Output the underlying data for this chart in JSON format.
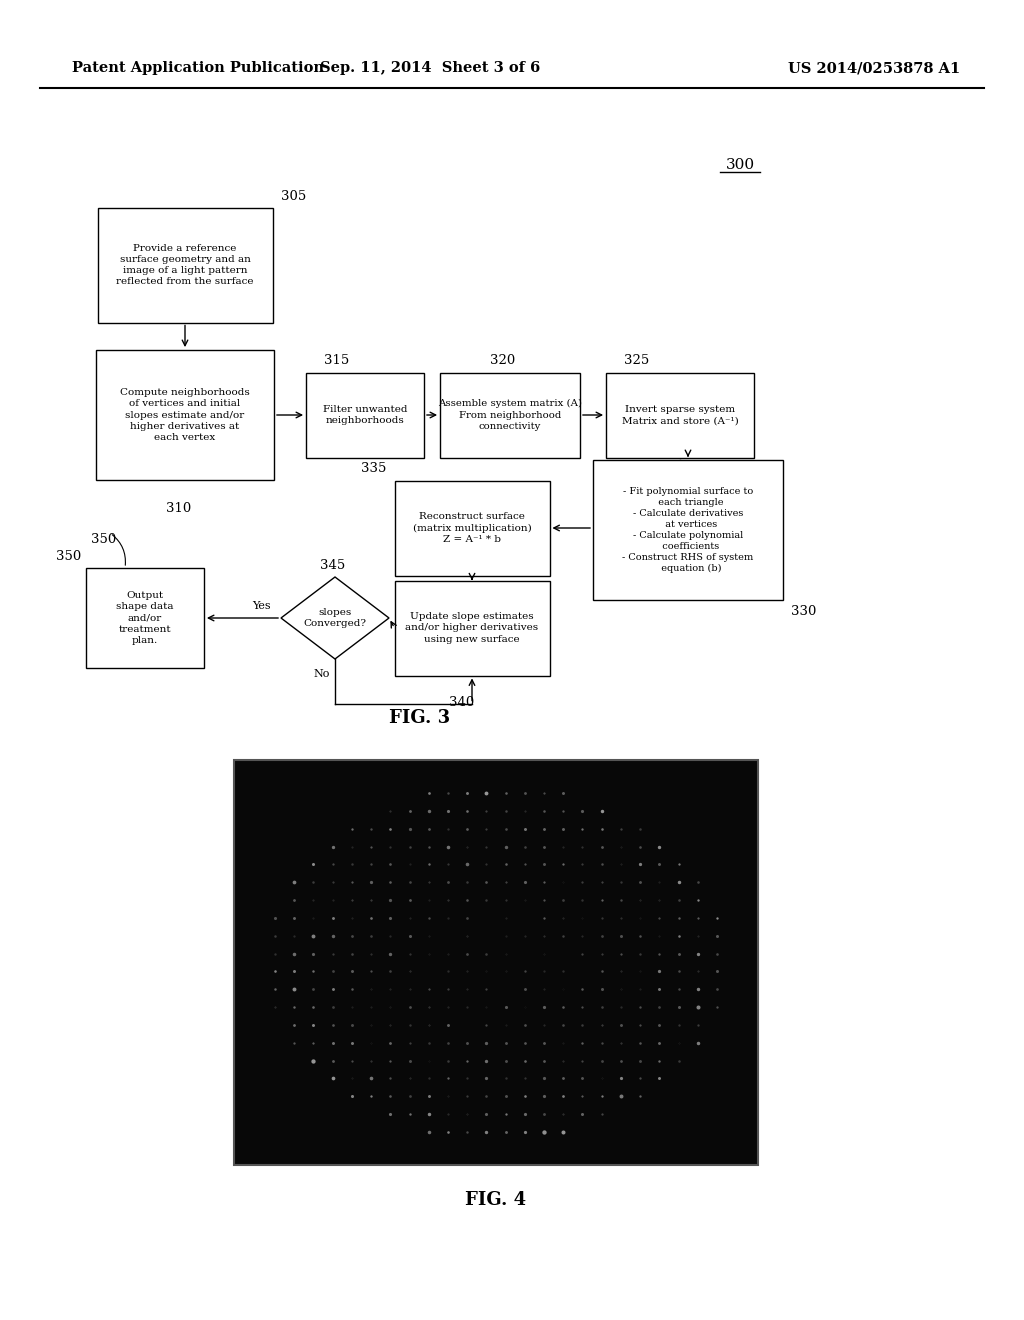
{
  "bg_color": "#ffffff",
  "header_left": "Patent Application Publication",
  "header_center": "Sep. 11, 2014  Sheet 3 of 6",
  "header_right": "US 2014/0253878 A1",
  "fig_label_300": "300",
  "fig3_label": "FIG. 3",
  "fig4_label": "FIG. 4",
  "box_305_text": "Provide a reference\nsurface geometry and an\nimage of a light pattern\nreflected from the surface",
  "box_310_text": "Compute neighborhoods\nof vertices and initial\nslopes estimate and/or\nhigher derivatives at\neach vertex",
  "box_315_text": "Filter unwanted\nneighborhoods",
  "box_320_text": "Assemble system matrix (A)\nFrom neighborhood\nconnectivity",
  "box_325_text": "Invert sparse system\nMatrix and store (A⁻¹)",
  "box_335_text": "Reconstruct surface\n(matrix multiplication)\nZ = A⁻¹ * b",
  "box_330_text": "- Fit polynomial surface to\n  each triangle\n- Calculate derivatives\n  at vertices\n- Calculate polynomial\n  coefficients\n- Construct RHS of system\n  equation (b)",
  "box_340_text": "Update slope estimates\nand/or higher derivatives\nusing new surface",
  "box_345_text": "slopes\nConverged?",
  "box_350_text": "Output\nshape data\nand/or\ntreatment\nplan.",
  "yes_label": "Yes",
  "no_label": "No"
}
